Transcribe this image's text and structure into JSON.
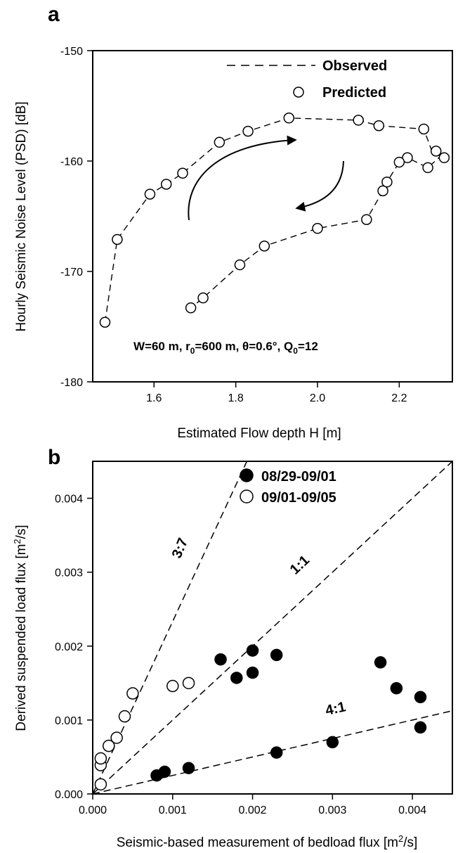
{
  "chart_data": [
    {
      "panel": "a",
      "type": "line",
      "xlabel": "Estimated Flow depth H [m]",
      "ylabel": "Hourly Seismic Noise Level (PSD) [dB]",
      "xlim": [
        1.45,
        2.33
      ],
      "ylim": [
        -180,
        -150
      ],
      "xticks": [
        1.6,
        1.8,
        2.0,
        2.2
      ],
      "xtick_labels": [
        "1.6",
        "1.8",
        "2.0",
        "2.2"
      ],
      "yticks": [
        -180,
        -170,
        -160,
        -150
      ],
      "ytick_labels": [
        "-180",
        "-170",
        "-160",
        "-150"
      ],
      "legend": {
        "placement": "top-right",
        "entries": [
          {
            "label": "Observed",
            "marker": "dashed-line"
          },
          {
            "label": "Predicted",
            "marker": "open-circle"
          }
        ]
      },
      "annotation": {
        "prefix": "W=60 m, r",
        "sub1": "0",
        "middle": "=600 m, θ=0.6°, Q",
        "sub2": "0",
        "suffix": "=12"
      },
      "arrows": [
        "rising limb (upward, clockwise)",
        "falling limb (downward, clockwise)"
      ],
      "series": [
        {
          "name": "Observed",
          "style": "dashed-line",
          "x": [
            1.48,
            1.51,
            1.59,
            1.63,
            1.67,
            1.76,
            1.83,
            1.93,
            2.1,
            2.15,
            2.26,
            2.28,
            2.29,
            2.31,
            2.3,
            2.27,
            2.22,
            2.2,
            2.17,
            2.16,
            2.12,
            2.0,
            1.87,
            1.81,
            1.72,
            1.69
          ],
          "y": [
            -174.6,
            -167.1,
            -163.0,
            -162.1,
            -161.1,
            -158.3,
            -157.3,
            -156.1,
            -156.3,
            -156.8,
            -157.1,
            -159.1,
            -159.3,
            -159.7,
            -159.6,
            -160.6,
            -159.7,
            -160.1,
            -161.9,
            -162.7,
            -165.3,
            -166.1,
            -167.7,
            -169.4,
            -172.4,
            -173.3
          ]
        },
        {
          "name": "Predicted",
          "style": "open-circle",
          "x": [
            1.48,
            1.51,
            1.59,
            1.63,
            1.67,
            1.76,
            1.83,
            1.93,
            2.1,
            2.15,
            2.26,
            2.29,
            2.31,
            2.27,
            2.22,
            2.2,
            2.17,
            2.16,
            2.12,
            2.0,
            1.87,
            1.81,
            1.72,
            1.69
          ],
          "y": [
            -174.6,
            -167.1,
            -163.0,
            -162.1,
            -161.1,
            -158.3,
            -157.3,
            -156.1,
            -156.3,
            -156.8,
            -157.1,
            -159.1,
            -159.7,
            -160.6,
            -159.7,
            -160.1,
            -161.9,
            -162.7,
            -165.3,
            -166.1,
            -167.7,
            -169.4,
            -172.4,
            -173.3
          ]
        }
      ]
    },
    {
      "panel": "b",
      "type": "scatter",
      "xlabel_main": "Seismic-based measurement of bedload flux [m",
      "xlabel_sup": "2",
      "xlabel_end": "/s]",
      "ylabel_main": "Derived suspended load flux [m",
      "ylabel_sup": "2",
      "ylabel_end": "/s]",
      "xlim": [
        0,
        0.0045
      ],
      "ylim": [
        0,
        0.0045
      ],
      "xticks": [
        0,
        0.001,
        0.002,
        0.003,
        0.004
      ],
      "xtick_labels": [
        "0.000",
        "0.001",
        "0.002",
        "0.003",
        "0.004"
      ],
      "yticks": [
        0,
        0.001,
        0.002,
        0.003,
        0.004
      ],
      "ytick_labels": [
        "0.000",
        "0.001",
        "0.002",
        "0.003",
        "0.004"
      ],
      "legend": {
        "placement": "top-right",
        "entries": [
          {
            "label": "08/29-09/01",
            "marker": "filled-circle"
          },
          {
            "label": "09/01-09/05",
            "marker": "open-circle"
          }
        ]
      },
      "ratio_lines": [
        {
          "label": "3:7",
          "slope": 2.3333
        },
        {
          "label": "1:1",
          "slope": 1.0
        },
        {
          "label": "4:1",
          "slope": 0.25
        }
      ],
      "series": [
        {
          "name": "08/29-09/01",
          "marker": "filled-circle",
          "x": [
            0.0008,
            0.0009,
            0.0012,
            0.0016,
            0.0018,
            0.002,
            0.002,
            0.0023,
            0.0023,
            0.003,
            0.0036,
            0.0038,
            0.0041,
            0.0041
          ],
          "y": [
            0.00025,
            0.0003,
            0.00035,
            0.00182,
            0.00157,
            0.00194,
            0.00164,
            0.00188,
            0.00056,
            0.0007,
            0.00178,
            0.00143,
            0.00131,
            0.0009
          ]
        },
        {
          "name": "09/01-09/05",
          "marker": "open-circle",
          "x": [
            0.0001,
            0.0001,
            0.0001,
            0.0002,
            0.0003,
            0.0004,
            0.0005,
            0.001,
            0.0012
          ],
          "y": [
            0.00013,
            0.00039,
            0.00048,
            0.00065,
            0.00076,
            0.00105,
            0.00136,
            0.00146,
            0.0015
          ]
        }
      ]
    }
  ]
}
